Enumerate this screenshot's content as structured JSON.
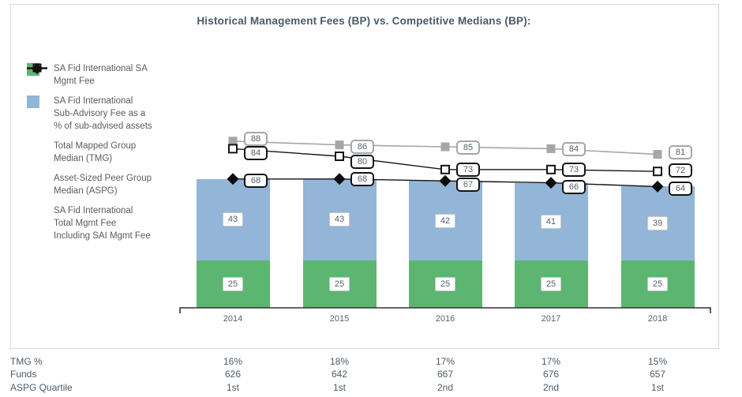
{
  "chart_data": {
    "type": "bar",
    "subtype": "stacked-bar-with-line-overlays",
    "title": "Historical Management Fees (BP) vs. Competitive Medians (BP):",
    "categories": [
      "2014",
      "2015",
      "2016",
      "2017",
      "2018"
    ],
    "bar_series": [
      {
        "name": "SA Fid International SA Mgmt Fee",
        "color": "#5cb671",
        "values": [
          25,
          25,
          25,
          25,
          25
        ]
      },
      {
        "name": "SA Fid International Sub-Advisory Fee as a % of sub-advised assets",
        "color": "#92b5d8",
        "values": [
          43,
          43,
          42,
          41,
          39
        ]
      }
    ],
    "line_series": [
      {
        "name": "Total Mapped Group Median (TMG)",
        "marker": "square-gray",
        "color": "#a6a6a6",
        "values": [
          88,
          86,
          85,
          84,
          81
        ]
      },
      {
        "name": "Asset-Sized Peer Group Median (ASPG)",
        "marker": "square-open",
        "color": "#141414",
        "values": [
          84,
          80,
          73,
          73,
          72
        ]
      },
      {
        "name": "SA Fid International Total Mgmt Fee Including SAI Mgmt Fee",
        "marker": "diamond-black",
        "color": "#141414",
        "values": [
          68,
          68,
          67,
          66,
          64
        ]
      }
    ],
    "ylim": [
      0,
      100
    ],
    "grid": false,
    "legend_position": "left",
    "xlabel": "",
    "ylabel": ""
  },
  "legend": {
    "items": [
      {
        "icon": "green-swatch-icon",
        "lines": "SA Fid International SA\nMgmt Fee"
      },
      {
        "icon": "blue-swatch-icon",
        "lines": "SA Fid International\nSub-Advisory Fee as a\n% of sub-advised assets"
      },
      {
        "icon": "gray-square-line-icon",
        "lines": "Total Mapped Group\nMedian (TMG)"
      },
      {
        "icon": "open-square-line-icon",
        "lines": "Asset-Sized Peer Group\nMedian (ASPG)"
      },
      {
        "icon": "black-diamond-line-icon",
        "lines": "SA Fid International\nTotal Mgmt Fee\nIncluding SAI Mgmt Fee"
      }
    ]
  },
  "footer_table": {
    "rows": [
      {
        "label": "TMG %",
        "values": [
          "16%",
          "18%",
          "17%",
          "17%",
          "15%"
        ]
      },
      {
        "label": "Funds",
        "values": [
          "626",
          "642",
          "667",
          "676",
          "657"
        ]
      },
      {
        "label": "ASPG Quartile",
        "values": [
          "1st",
          "1st",
          "2nd",
          "2nd",
          "1st"
        ]
      }
    ]
  },
  "colors": {
    "green_bar": "#5cb671",
    "blue_bar": "#92b5d8",
    "tmg_gray": "#a6a6a6",
    "line_black": "#141414",
    "title_text": "#485a69",
    "label_text": "#53626e",
    "axis": "#333333",
    "panel_border": "#d9d9d9"
  }
}
